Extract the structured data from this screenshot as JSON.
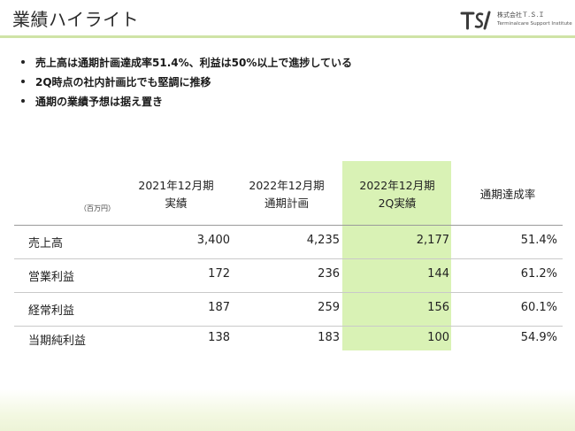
{
  "slide": {
    "title": "業績ハイライト",
    "logo": {
      "mark": "T.S.I",
      "name": "株式会社Ｔ.Ｓ.Ｉ",
      "subtitle": "Terminalcare Support Institute"
    }
  },
  "bullets": [
    "売上高は通期計画達成率51.4%、利益は50%以上で進捗している",
    "2Q時点の社内計画比でも堅調に推移",
    "通期の業績予想は据え置き"
  ],
  "table": {
    "unit": "（百万円）",
    "columns": [
      {
        "line1": "2021年12月期",
        "line2": "実績"
      },
      {
        "line1": "2022年12月期",
        "line2": "通期計画"
      },
      {
        "line1": "2022年12月期",
        "line2": "2Q実績"
      },
      {
        "line1": "通期達成率",
        "line2": ""
      }
    ],
    "highlight_color": "#d9f2b5",
    "rows": [
      {
        "label": "売上高",
        "values": [
          "3,400",
          "4,235",
          "2,177",
          "51.4%"
        ]
      },
      {
        "label": "営業利益",
        "values": [
          "172",
          "236",
          "144",
          "61.2%"
        ]
      },
      {
        "label": "経常利益",
        "values": [
          "187",
          "259",
          "156",
          "60.1%"
        ]
      },
      {
        "label": "当期純利益",
        "values": [
          "138",
          "183",
          "100",
          "54.9%"
        ]
      }
    ]
  },
  "colors": {
    "accent_rule": "#cfe3a6",
    "highlight": "#d9f2b5"
  }
}
